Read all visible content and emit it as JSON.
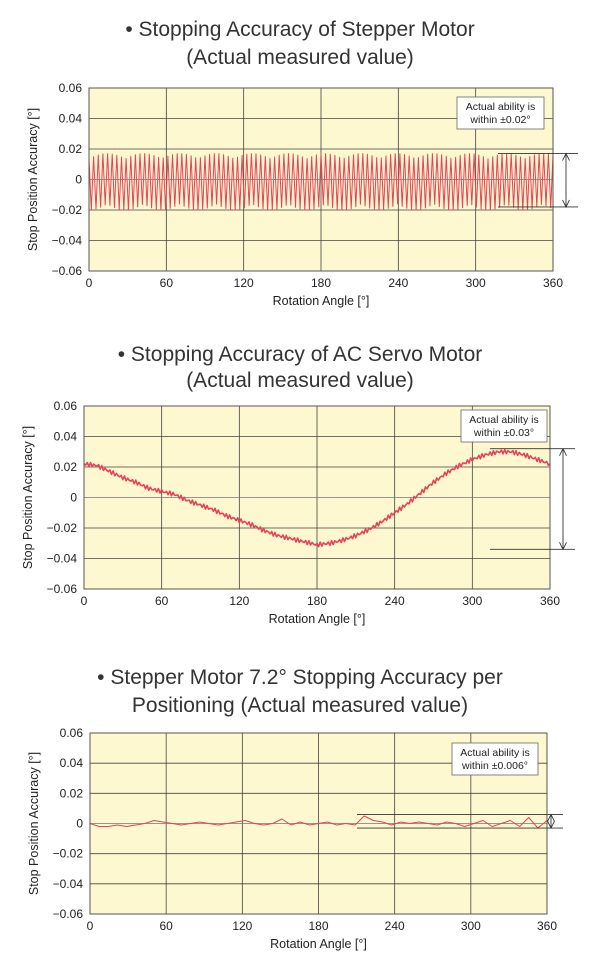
{
  "chart_data": [
    {
      "type": "line",
      "title_line1": "• Stopping Accuracy of Stepper Motor",
      "title_line2": "(Actual measured value)",
      "xlabel": "Rotation Angle [°]",
      "ylabel": "Stop Position Accuracy [°]",
      "xlim": [
        0,
        360
      ],
      "ylim": [
        -0.06,
        0.06
      ],
      "xticks": [
        "0",
        "60",
        "120",
        "180",
        "240",
        "300",
        "360"
      ],
      "yticks": [
        "0.06",
        "0.04",
        "0.02",
        "0",
        "−0.02",
        "−0.04",
        "−0.06"
      ],
      "grid": true,
      "annotation_line1": "Actual ability is",
      "annotation_line2": "within ±0.02°",
      "bracket_range": [
        -0.018,
        0.017
      ],
      "series": [
        {
          "name": "Stepper Motor",
          "pattern": "oscillation",
          "amplitude_pos": 0.017,
          "amplitude_neg": -0.02,
          "cycles": 100
        }
      ]
    },
    {
      "type": "line",
      "title_line1": "• Stopping Accuracy of AC Servo Motor",
      "title_line2": "(Actual measured value)",
      "xlabel": "Rotation Angle [°]",
      "ylabel": "Stop Position Accuracy [°]",
      "xlim": [
        0,
        360
      ],
      "ylim": [
        -0.06,
        0.06
      ],
      "xticks": [
        "0",
        "60",
        "120",
        "180",
        "240",
        "300",
        "360"
      ],
      "yticks": [
        "0.06",
        "0.04",
        "0.02",
        "0",
        "−0.02",
        "−0.04",
        "−0.06"
      ],
      "grid": true,
      "annotation_line1": "Actual ability is",
      "annotation_line2": "within ±0.03°",
      "bracket_range": [
        -0.034,
        0.032
      ],
      "series": [
        {
          "name": "AC Servo Motor",
          "pattern": "curve",
          "x": [
            0,
            10,
            20,
            30,
            40,
            50,
            60,
            70,
            80,
            90,
            100,
            110,
            120,
            130,
            140,
            150,
            160,
            170,
            180,
            190,
            200,
            210,
            220,
            230,
            240,
            250,
            260,
            270,
            280,
            290,
            300,
            310,
            320,
            330,
            340,
            350,
            360
          ],
          "y": [
            0.022,
            0.021,
            0.017,
            0.013,
            0.01,
            0.006,
            0.004,
            0.002,
            -0.002,
            -0.005,
            -0.008,
            -0.012,
            -0.015,
            -0.018,
            -0.022,
            -0.025,
            -0.027,
            -0.029,
            -0.031,
            -0.03,
            -0.028,
            -0.025,
            -0.021,
            -0.016,
            -0.01,
            -0.004,
            0.003,
            0.01,
            0.016,
            0.021,
            0.025,
            0.028,
            0.03,
            0.03,
            0.028,
            0.025,
            0.022
          ]
        }
      ]
    },
    {
      "type": "line",
      "title_line1": "• Stepper Motor 7.2° Stopping Accuracy per",
      "title_line2": "Positioning (Actual measured value)",
      "xlabel": "Rotation Angle [°]",
      "ylabel": "Stop Position Accuracy [°]",
      "xlim": [
        0,
        360
      ],
      "ylim": [
        -0.06,
        0.06
      ],
      "xticks": [
        "0",
        "60",
        "120",
        "180",
        "240",
        "300",
        "360"
      ],
      "yticks": [
        "0.06",
        "0.04",
        "0.02",
        "0",
        "−0.02",
        "−0.04",
        "−0.06"
      ],
      "grid": true,
      "annotation_line1": "Actual ability is",
      "annotation_line2": "within ±0.006°",
      "bracket_range": [
        -0.003,
        0.006
      ],
      "series": [
        {
          "name": "Stepper Motor 7.2°",
          "pattern": "curve",
          "x": [
            0,
            7.2,
            14.4,
            21.6,
            28.8,
            36,
            43.2,
            50.4,
            57.6,
            64.8,
            72,
            79.2,
            86.4,
            93.6,
            100.8,
            108,
            115.2,
            122.4,
            129.6,
            136.8,
            144,
            151.2,
            158.4,
            165.6,
            172.8,
            180,
            187.2,
            194.4,
            201.6,
            208.8,
            216,
            223.2,
            230.4,
            237.6,
            244.8,
            252,
            259.2,
            266.4,
            273.6,
            280.8,
            288,
            295.2,
            302.4,
            309.6,
            316.8,
            324,
            331.2,
            338.4,
            345.6,
            352.8,
            360
          ],
          "y": [
            0,
            -0.002,
            -0.002,
            -0.001,
            -0.002,
            -0.001,
            0,
            0.002,
            0.001,
            0,
            -0.001,
            0,
            0.001,
            0,
            -0.001,
            0,
            0.001,
            0.002,
            0,
            -0.001,
            0,
            0.003,
            -0.001,
            0.001,
            -0.001,
            0,
            0.001,
            -0.001,
            0,
            -0.001,
            0.005,
            0.002,
            0.001,
            -0.001,
            0.001,
            0,
            0.001,
            0,
            -0.001,
            0.001,
            0,
            -0.002,
            0,
            0.002,
            -0.002,
            0,
            0.002,
            -0.002,
            0.004,
            -0.003,
            0.002
          ]
        }
      ]
    }
  ]
}
